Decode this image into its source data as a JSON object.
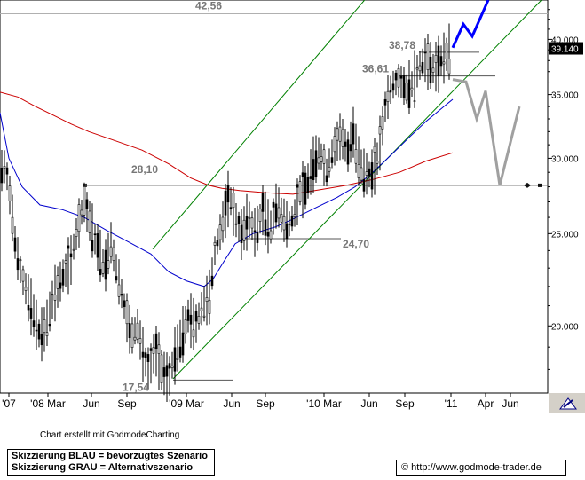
{
  "chart_data": {
    "type": "line",
    "title": "",
    "xlabel": "",
    "ylabel": "",
    "x_tick_labels": [
      "'07",
      "'08 Mar",
      "Jun",
      "Sep",
      "'09 Mar",
      "Jun",
      "Sep",
      "'10 Mar",
      "Jun",
      "Sep",
      "'11",
      "Apr",
      "Jun"
    ],
    "y_tick_labels": [
      "20.000",
      "25.000",
      "30.000",
      "35.000",
      "40.000"
    ],
    "ylim": [
      17.0,
      44.0
    ],
    "y_scale": "log",
    "grid": false,
    "last_price_label": "39.140",
    "level_labels": [
      "42,56",
      "38,78",
      "36,61",
      "28,10",
      "24,70",
      "17,54"
    ],
    "series": [
      {
        "name": "",
        "color": "#0000cc",
        "role": "moving-average-short",
        "values": [
          [
            0,
            33.5
          ],
          [
            10,
            30.0
          ],
          [
            25,
            28.0
          ],
          [
            45,
            26.8
          ],
          [
            70,
            26.5
          ],
          [
            95,
            26.0
          ],
          [
            120,
            25.2
          ],
          [
            145,
            24.5
          ],
          [
            170,
            23.8
          ],
          [
            190,
            22.8
          ],
          [
            210,
            22.3
          ],
          [
            230,
            22.0
          ],
          [
            240,
            22.4
          ],
          [
            250,
            23.2
          ],
          [
            265,
            24.4
          ],
          [
            285,
            25.0
          ],
          [
            310,
            25.4
          ],
          [
            330,
            25.9
          ],
          [
            355,
            26.6
          ],
          [
            380,
            27.3
          ],
          [
            400,
            28.0
          ],
          [
            420,
            29.0
          ],
          [
            440,
            30.2
          ],
          [
            460,
            31.5
          ],
          [
            480,
            32.8
          ],
          [
            500,
            34.0
          ],
          [
            510,
            34.6
          ]
        ]
      },
      {
        "name": "",
        "color": "#cc0000",
        "role": "moving-average-long",
        "values": [
          [
            0,
            35.2
          ],
          [
            20,
            34.8
          ],
          [
            40,
            34.0
          ],
          [
            60,
            33.3
          ],
          [
            80,
            32.6
          ],
          [
            100,
            32.0
          ],
          [
            130,
            31.3
          ],
          [
            160,
            30.6
          ],
          [
            190,
            29.6
          ],
          [
            215,
            28.6
          ],
          [
            235,
            28.1
          ],
          [
            250,
            27.9
          ],
          [
            270,
            27.75
          ],
          [
            300,
            27.6
          ],
          [
            330,
            27.5
          ],
          [
            360,
            27.8
          ],
          [
            390,
            28.1
          ],
          [
            420,
            28.5
          ],
          [
            450,
            29.0
          ],
          [
            480,
            29.8
          ],
          [
            510,
            30.4
          ]
        ]
      },
      {
        "name": "Skizzierung BLAU = bevorzugtes Szenario",
        "color": "#0000ff",
        "role": "scenario",
        "values": [
          [
            510,
            39.2
          ],
          [
            522,
            41.5
          ],
          [
            532,
            40.3
          ],
          [
            550,
            44.0
          ]
        ]
      },
      {
        "name": "Skizzierung GRAU = Alternativszenario",
        "color": "#a0a0a0",
        "role": "scenario",
        "values": [
          [
            510,
            36.3
          ],
          [
            525,
            36.1
          ],
          [
            537,
            33.0
          ],
          [
            547,
            35.3
          ],
          [
            563,
            28.1
          ],
          [
            585,
            34.0
          ]
        ]
      }
    ],
    "price_path": [
      [
        0,
        29.0
      ],
      [
        6,
        29.5
      ],
      [
        10,
        28.0
      ],
      [
        14,
        26.0
      ],
      [
        18,
        24.0
      ],
      [
        25,
        22.5
      ],
      [
        35,
        21.0
      ],
      [
        45,
        19.5
      ],
      [
        52,
        20.0
      ],
      [
        60,
        21.5
      ],
      [
        70,
        22.5
      ],
      [
        80,
        23.5
      ],
      [
        88,
        25.5
      ],
      [
        95,
        27.0
      ],
      [
        100,
        26.0
      ],
      [
        108,
        24.5
      ],
      [
        118,
        23.0
      ],
      [
        125,
        24.5
      ],
      [
        133,
        22.5
      ],
      [
        140,
        21.0
      ],
      [
        148,
        19.5
      ],
      [
        155,
        20.0
      ],
      [
        162,
        18.5
      ],
      [
        168,
        18.0
      ],
      [
        175,
        19.0
      ],
      [
        182,
        18.0
      ],
      [
        190,
        17.6
      ],
      [
        198,
        18.8
      ],
      [
        205,
        19.5
      ],
      [
        212,
        20.5
      ],
      [
        220,
        20.0
      ],
      [
        228,
        21.0
      ],
      [
        236,
        21.5
      ],
      [
        242,
        24.0
      ],
      [
        250,
        25.5
      ],
      [
        258,
        27.5
      ],
      [
        265,
        26.0
      ],
      [
        272,
        25.0
      ],
      [
        280,
        26.0
      ],
      [
        288,
        25.0
      ],
      [
        296,
        26.5
      ],
      [
        304,
        25.2
      ],
      [
        312,
        27.0
      ],
      [
        318,
        26.0
      ],
      [
        325,
        25.5
      ],
      [
        332,
        26.3
      ],
      [
        338,
        27.8
      ],
      [
        345,
        28.0
      ],
      [
        352,
        29.5
      ],
      [
        360,
        30.5
      ],
      [
        368,
        29.0
      ],
      [
        376,
        30.8
      ],
      [
        384,
        31.8
      ],
      [
        392,
        30.5
      ],
      [
        398,
        32.0
      ],
      [
        403,
        30.0
      ],
      [
        410,
        29.0
      ],
      [
        418,
        28.8
      ],
      [
        425,
        30.0
      ],
      [
        430,
        32.0
      ],
      [
        435,
        34.5
      ],
      [
        442,
        35.8
      ],
      [
        450,
        36.3
      ],
      [
        458,
        35.5
      ],
      [
        465,
        36.0
      ],
      [
        472,
        37.5
      ],
      [
        480,
        38.2
      ],
      [
        488,
        37.3
      ],
      [
        495,
        37.8
      ],
      [
        502,
        38.5
      ],
      [
        508,
        39.14
      ]
    ]
  },
  "menu": {
    "icon": "triangle-pencil-icon"
  },
  "footer": {
    "credit": "Chart erstellt mit GodmodeCharting",
    "legend_blue": "Skizzierung BLAU = bevorzugtes Szenario",
    "legend_gray": "Skizzierung GRAU = Alternativszenario",
    "copyright_symbol": "©",
    "url": "http://www.godmode-trader.de"
  }
}
